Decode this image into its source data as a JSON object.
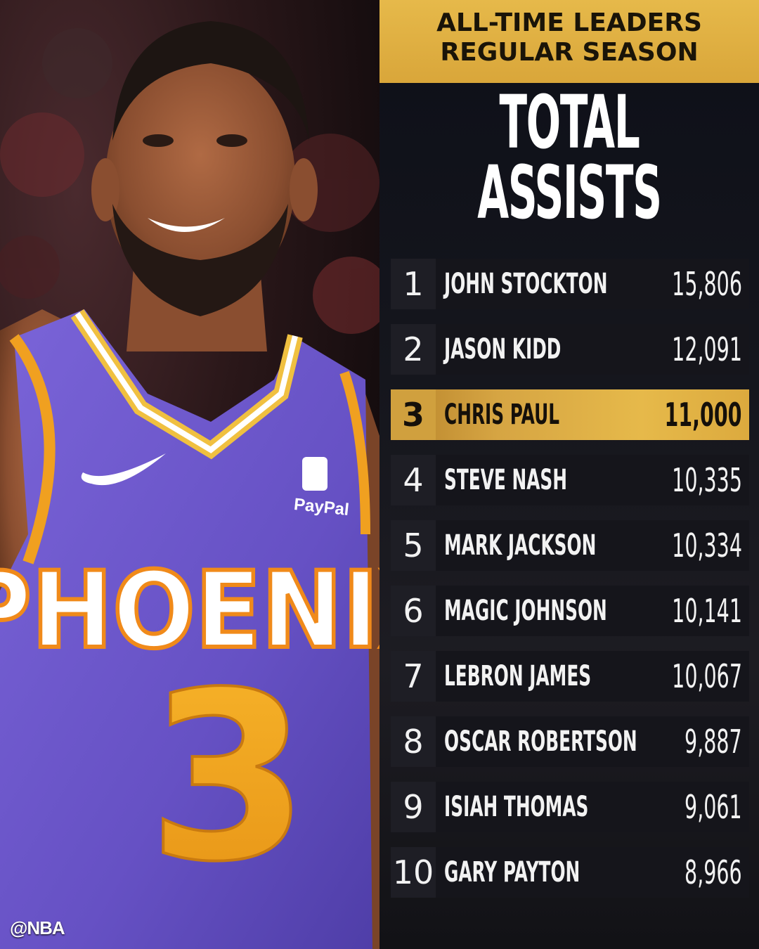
{
  "header": {
    "line1": "ALL-TIME LEADERS",
    "line2": "REGULAR SEASON"
  },
  "title": {
    "line1": "TOTAL",
    "line2": "ASSISTS"
  },
  "credit": "@NBA",
  "jersey": {
    "team": "PHOENIX",
    "number": "3",
    "sponsor": "PayPal"
  },
  "leaders": [
    {
      "rank": "1",
      "name": "JOHN STOCKTON",
      "assists": "15,806"
    },
    {
      "rank": "2",
      "name": "JASON KIDD",
      "assists": "12,091"
    },
    {
      "rank": "3",
      "name": "CHRIS PAUL",
      "assists": "11,000",
      "highlight": true
    },
    {
      "rank": "4",
      "name": "STEVE NASH",
      "assists": "10,335"
    },
    {
      "rank": "5",
      "name": "MARK JACKSON",
      "assists": "10,334"
    },
    {
      "rank": "6",
      "name": "MAGIC JOHNSON",
      "assists": "10,141"
    },
    {
      "rank": "7",
      "name": "LEBRON JAMES",
      "assists": "10,067"
    },
    {
      "rank": "8",
      "name": "OSCAR ROBERTSON",
      "assists": "9,887"
    },
    {
      "rank": "9",
      "name": "ISIAH THOMAS",
      "assists": "9,061"
    },
    {
      "rank": "10",
      "name": "GARY PAYTON",
      "assists": "8,966"
    }
  ],
  "colors": {
    "gold": "#e6b94a",
    "jersey_purple": "#6a55c8",
    "jersey_orange": "#f0a020",
    "panel_dark": "#15151b"
  }
}
